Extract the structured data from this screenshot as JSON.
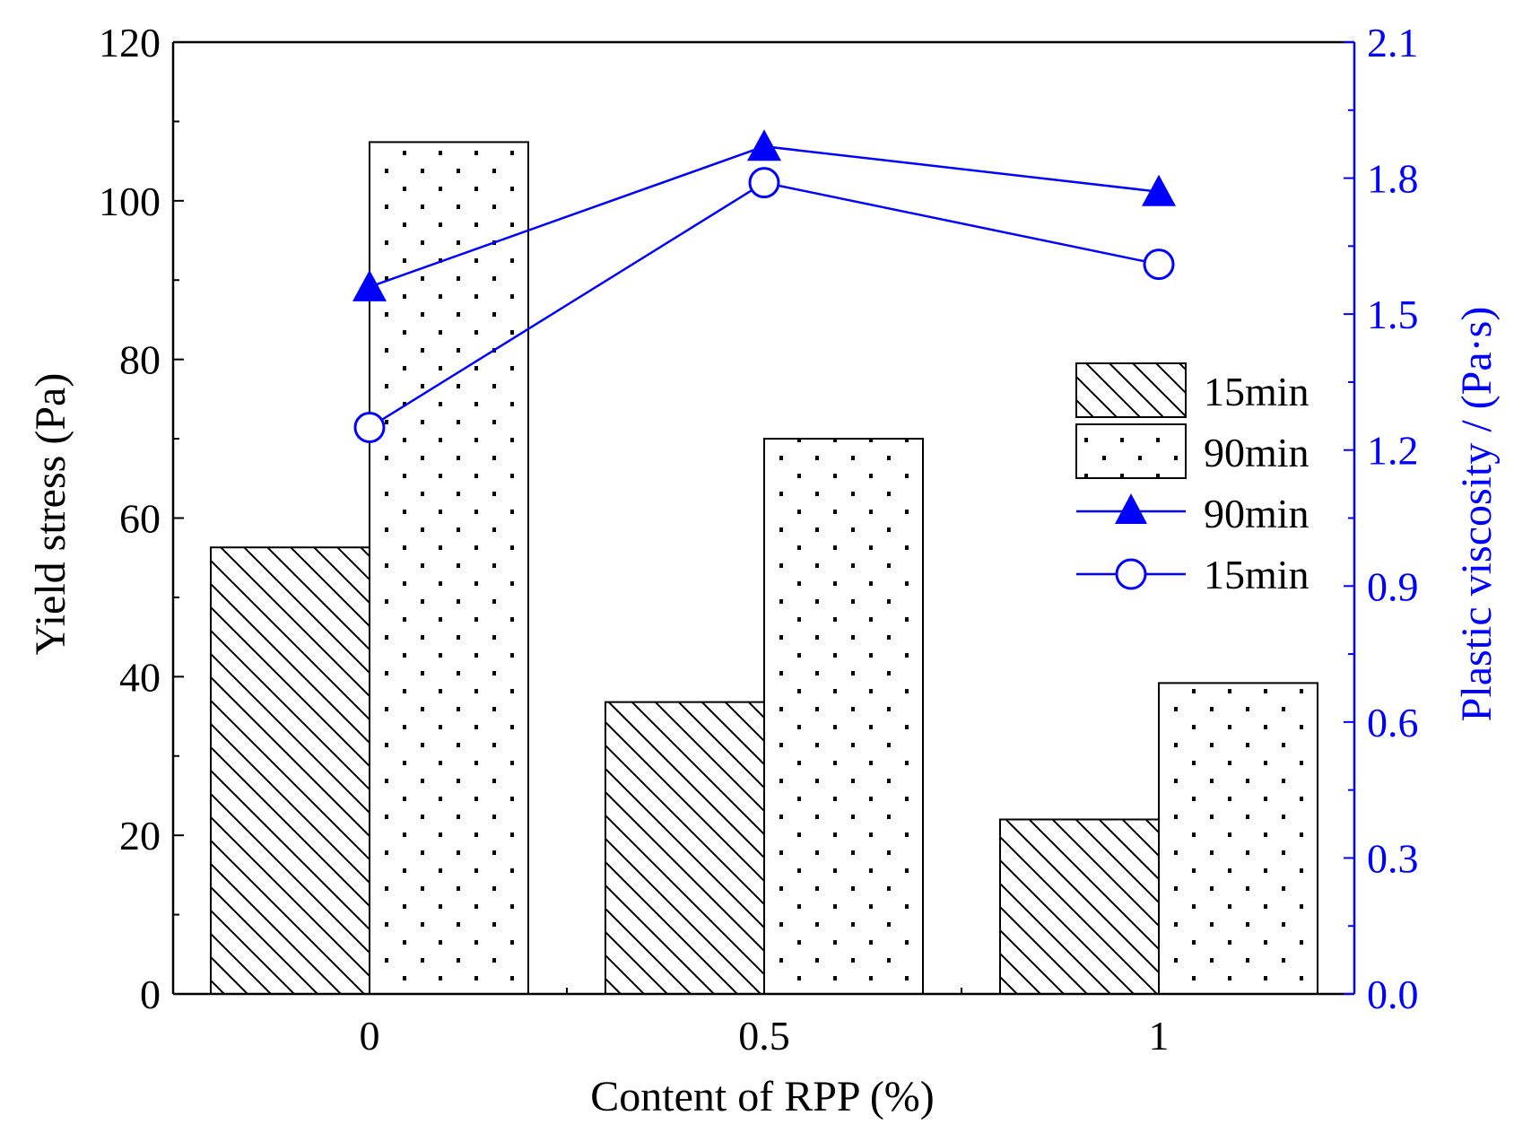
{
  "chart_data": {
    "type": "bar",
    "categories": [
      "0",
      "0.5",
      "1"
    ],
    "xlabel": "Content of RPP (%)",
    "ylabel": "Yield stress (Pa)",
    "y2label": "Plastic viscosity / (Pa·s)",
    "ylim": [
      0,
      120
    ],
    "yticks": [
      "0",
      "20",
      "40",
      "60",
      "80",
      "100",
      "120"
    ],
    "y2lim": [
      0,
      2.1
    ],
    "y2ticks": [
      "0.0",
      "0.3",
      "0.6",
      "0.9",
      "1.2",
      "1.5",
      "1.8",
      "2.1"
    ],
    "bar_series": [
      {
        "name": "15min",
        "pattern": "hatch",
        "values": [
          56.3,
          36.8,
          22.0
        ]
      },
      {
        "name": "90min",
        "pattern": "dots",
        "values": [
          107.4,
          70.0,
          39.2
        ]
      }
    ],
    "line_series": [
      {
        "name": "90min",
        "marker": "triangle",
        "values": [
          1.56,
          1.87,
          1.77
        ]
      },
      {
        "name": "15min",
        "marker": "circle",
        "values": [
          1.25,
          1.79,
          1.61
        ]
      }
    ],
    "legend_labels": [
      "15min",
      "90min",
      "90min",
      "15min"
    ],
    "legend_position": "right-middle",
    "colors": {
      "axis": "#000000",
      "accent": "#0000ff"
    }
  }
}
